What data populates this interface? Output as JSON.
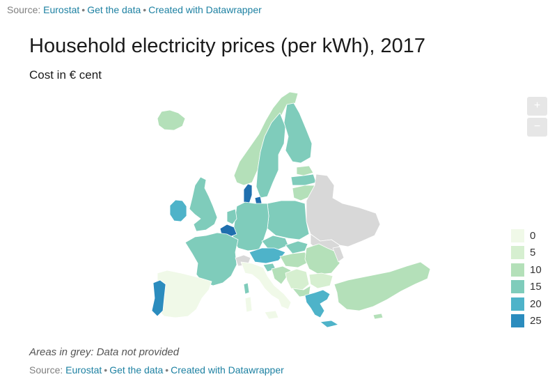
{
  "source": {
    "prefix": "Source:",
    "link_eurostat": "Eurostat",
    "link_get_data": "Get the data",
    "link_datawrapper": "Created with Datawrapper",
    "separator": "•"
  },
  "title": "Household electricity prices (per kWh), 2017",
  "subtitle": "Cost in € cent",
  "note": "Areas in grey: Data not provided",
  "zoom": {
    "in_label": "+",
    "out_label": "−"
  },
  "legend": {
    "items": [
      {
        "label": "0",
        "color": "#f0f9e8"
      },
      {
        "label": "5",
        "color": "#d6efd0"
      },
      {
        "label": "10",
        "color": "#b4e0b9"
      },
      {
        "label": "15",
        "color": "#7fccbb"
      },
      {
        "label": "20",
        "color": "#4eb3c9"
      },
      {
        "label": "25",
        "color": "#2b8cbe"
      }
    ],
    "no_data_color": "#d8d8d8"
  },
  "colors": {
    "c0": "#f0f9e8",
    "c5": "#d6efd0",
    "c10": "#b4e0b9",
    "c15": "#7fccbb",
    "c20": "#4eb3c9",
    "c25": "#2b8cbe",
    "c30": "#1f6fae",
    "nodata": "#d8d8d8"
  }
}
